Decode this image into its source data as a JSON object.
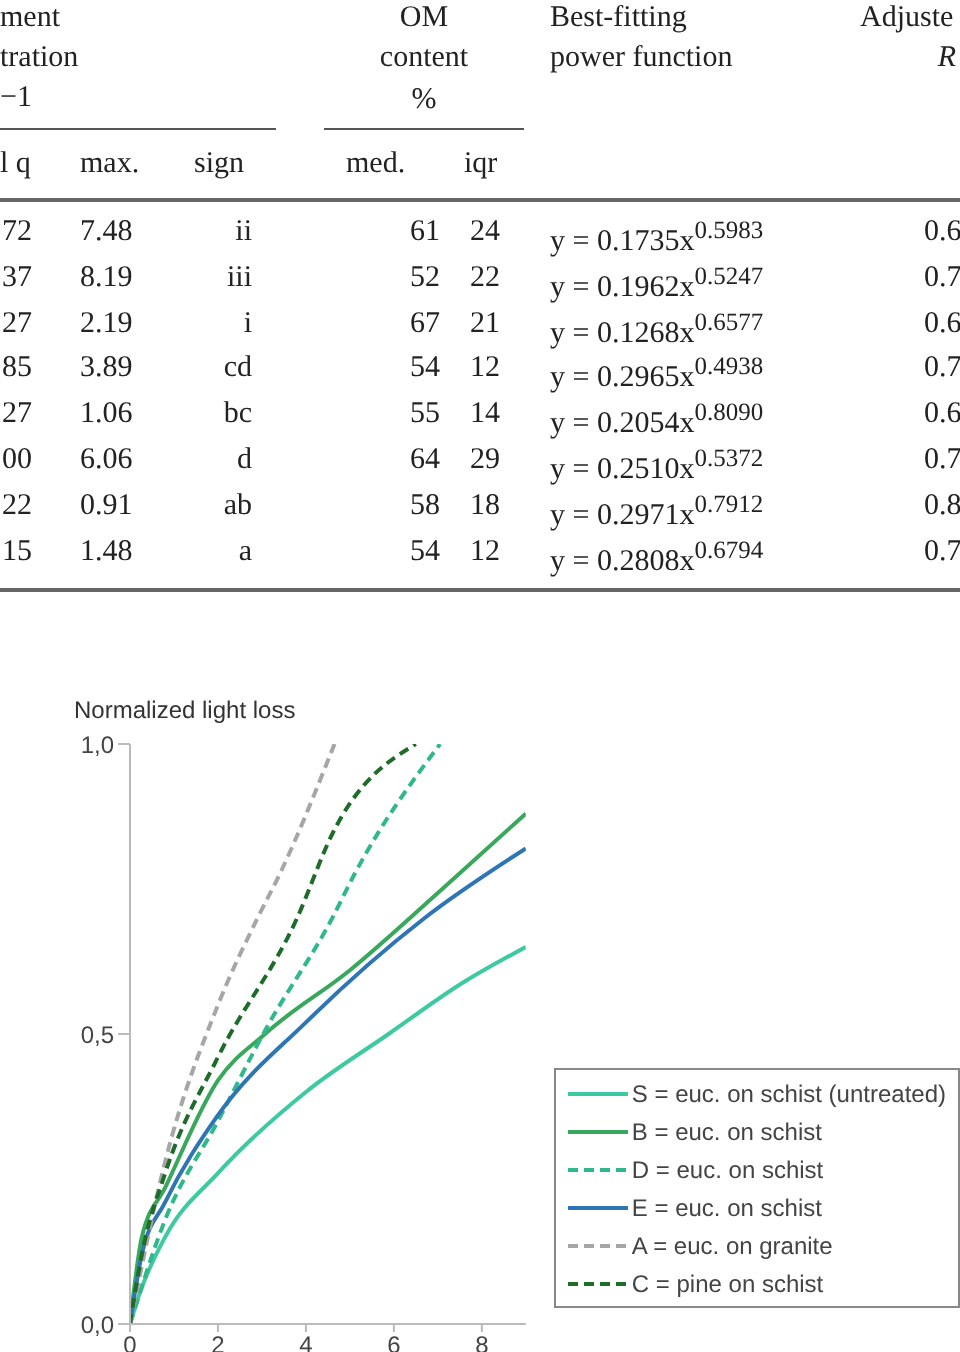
{
  "chart_data": [
    {
      "type": "other",
      "annotations": [
        "ment",
        "tration",
        "−1",
        "OM",
        "content",
        "%",
        "Best-fitting",
        "power function",
        "Adjuste",
        "R",
        "l q",
        "max.",
        "sign",
        "med.",
        "iqr",
        "72",
        "7.48",
        "ii",
        "61",
        "24",
        "y = 0.1735x$^{0.5983}$",
        "0.6",
        "37",
        "8.19",
        "iii",
        "52",
        "22",
        "y = 0.1962x$^{0.5247}$",
        "0.7",
        "27",
        "2.19",
        "i",
        "67",
        "21",
        "y = 0.1268x$^{0.6577}$",
        "0.6",
        "85",
        "3.89",
        "cd",
        "54",
        "12",
        "y = 0.2965x$^{0.4938}$",
        "0.7",
        "27",
        "1.06",
        "bc",
        "55",
        "14",
        "y = 0.2054x$^{0.8090}$",
        "0.6",
        "00",
        "6.06",
        "d",
        "64",
        "29",
        "y = 0.2510x$^{0.5372}$",
        "0.7",
        "22",
        "0.91",
        "ab",
        "58",
        "18",
        "y = 0.2971x$^{0.7912}$",
        "0.8",
        "15",
        "1.48",
        "a",
        "54",
        "12",
        "y = 0.2808x$^{0.6794}$",
        "0.7"
      ]
    },
    {
      "type": "line",
      "ylabel": "Normalized light loss",
      "xlim": [
        0,
        9
      ],
      "xticks": [
        0,
        2,
        4,
        6,
        8
      ],
      "ylim": [
        0,
        1
      ],
      "yticks": [
        {
          "value": 0,
          "label": "0,0"
        },
        {
          "value": 0.5,
          "label": "0,5"
        },
        {
          "value": 1,
          "label": "1,0"
        }
      ],
      "grid": false,
      "legend": "bottom right",
      "marker": "none",
      "series": [
        {
          "name": "S = euc. on schist (untreated)",
          "color": "#3dcaa0",
          "line_style": "solid",
          "x": [
            0,
            0.23,
            0.8,
            2,
            4,
            5.88,
            7.6,
            9
          ],
          "values": [
            0,
            0.055,
            0.15,
            0.26,
            0.4,
            0.5,
            0.59,
            0.65
          ]
        },
        {
          "name": "B = euc. on schist",
          "color": "#3aa85c",
          "line_style": "solid",
          "x": [
            0,
            0.27,
            0.8,
            2,
            3.07,
            5,
            7.1,
            9
          ],
          "values": [
            0,
            0.15,
            0.235,
            0.42,
            0.5,
            0.61,
            0.75,
            0.88
          ]
        },
        {
          "name": "D = euc. on schist",
          "color": "#2fb88a",
          "line_style": "dashed",
          "x": [
            0,
            0.8,
            2,
            3.1,
            4.6,
            5.1,
            7.05
          ],
          "values": [
            0,
            0.18,
            0.35,
            0.51,
            0.7,
            0.775,
            1
          ]
        },
        {
          "name": "E = euc. on schist",
          "color": "#2e75b6",
          "line_style": "solid",
          "x": [
            0,
            0.27,
            0.8,
            2,
            4,
            6.7,
            9
          ],
          "values": [
            0,
            0.12,
            0.21,
            0.36,
            0.52,
            0.7,
            0.82
          ]
        },
        {
          "name": "A = euc. on granite",
          "color": "#a6a6a6",
          "line_style": "dashed",
          "x": [
            0,
            0.8,
            2,
            2.9,
            3.4,
            4.65
          ],
          "values": [
            0,
            0.28,
            0.55,
            0.7,
            0.775,
            1
          ]
        },
        {
          "name": "C = pine on schist",
          "color": "#1e6b2a",
          "line_style": "dashed",
          "x": [
            0,
            0.27,
            0.8,
            2,
            3.8,
            4.6,
            6.5
          ],
          "values": [
            0,
            0.12,
            0.26,
            0.46,
            0.7,
            0.845,
            1
          ]
        }
      ]
    }
  ]
}
